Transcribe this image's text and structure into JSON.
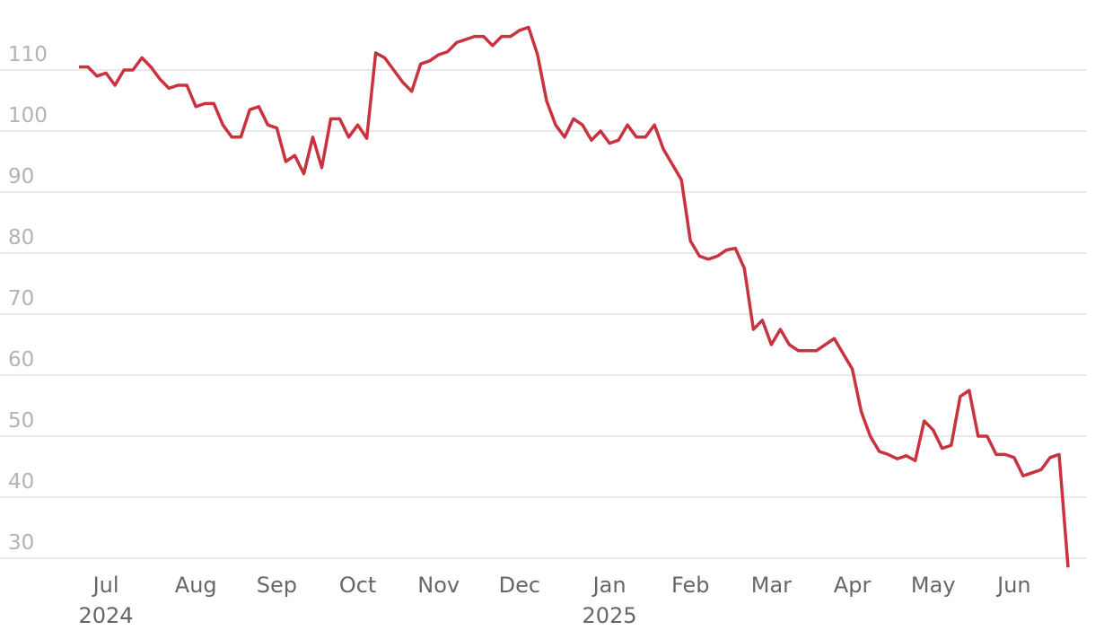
{
  "chart_data": {
    "type": "line",
    "color": "#c8333f",
    "grid": true,
    "categories": [
      null,
      null,
      null,
      "Jul 2024",
      null,
      null,
      null,
      null,
      null,
      null,
      null,
      null,
      null,
      "Aug",
      null,
      null,
      null,
      null,
      null,
      null,
      null,
      null,
      "Sep",
      null,
      null,
      null,
      null,
      null,
      null,
      null,
      null,
      "Oct",
      null,
      null,
      null,
      null,
      null,
      null,
      null,
      null,
      "Nov",
      null,
      null,
      null,
      null,
      null,
      null,
      null,
      null,
      "Dec",
      null,
      null,
      null,
      null,
      null,
      null,
      null,
      null,
      null,
      "Jan 2025",
      null,
      null,
      null,
      null,
      null,
      null,
      null,
      null,
      "Feb",
      null,
      null,
      null,
      null,
      null,
      null,
      null,
      null,
      "Mar",
      null,
      null,
      null,
      null,
      null,
      null,
      null,
      null,
      "Apr",
      null,
      null,
      null,
      null,
      null,
      null,
      null,
      null,
      "May",
      null,
      null,
      null,
      null,
      null,
      null,
      null,
      null,
      "Jun",
      null,
      null,
      null,
      null,
      null,
      null
    ],
    "values": [
      110.5,
      110.5,
      109,
      109.5,
      107.5,
      110,
      110,
      112,
      110.5,
      108.5,
      107,
      107.5,
      107.5,
      104,
      104.5,
      104.5,
      101,
      99,
      99,
      103.5,
      104,
      101,
      100.5,
      95,
      96,
      93,
      99,
      94,
      102,
      102,
      99,
      101,
      98.8,
      112.8,
      112,
      110,
      108,
      106.5,
      111,
      111.5,
      112.5,
      113,
      114.5,
      115,
      115.5,
      115.5,
      114,
      115.5,
      115.5,
      116.5,
      117,
      112.5,
      105,
      101,
      99,
      102,
      101,
      98.5,
      100,
      98,
      98.5,
      101,
      99,
      99,
      101,
      97,
      94.5,
      92,
      82,
      79.5,
      79,
      79.5,
      80.5,
      80.8,
      77.5,
      67.5,
      69,
      65,
      67.5,
      65,
      64,
      64,
      64,
      65,
      66,
      63.5,
      61,
      54,
      50,
      47.5,
      47,
      46.3,
      46.8,
      46,
      52.5,
      51,
      48,
      48.5,
      56.5,
      57.5,
      50,
      50,
      47,
      47,
      46.5,
      43.5,
      44,
      44.5,
      46.5,
      47,
      28.5
    ],
    "ylim": [
      27,
      118
    ],
    "yticks": [
      30,
      40,
      50,
      60,
      70,
      80,
      90,
      100,
      110
    ]
  }
}
